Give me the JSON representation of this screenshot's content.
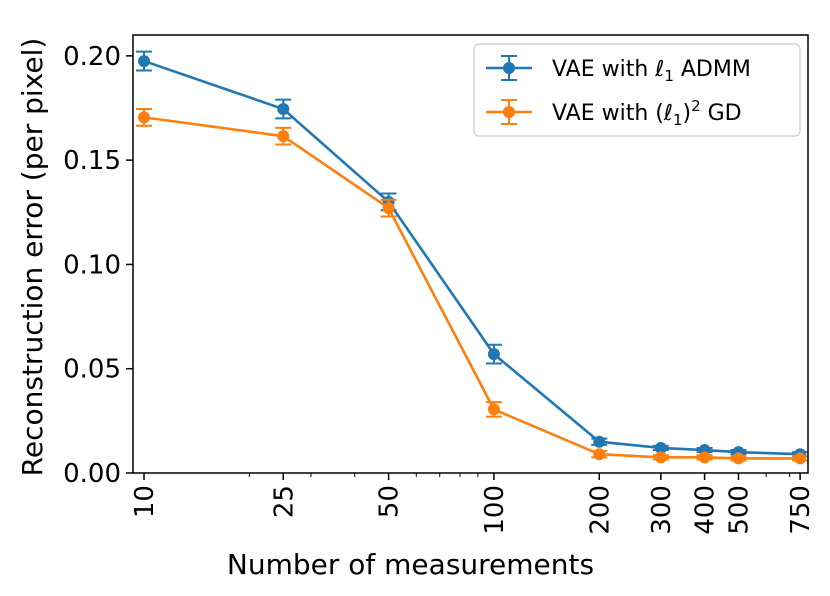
{
  "chart_data": {
    "type": "line",
    "xscale": "log",
    "x": [
      10,
      25,
      50,
      100,
      200,
      300,
      400,
      500,
      750
    ],
    "x_tick_labels": [
      "10",
      "25",
      "50",
      "100",
      "200",
      "300",
      "400",
      "500",
      "750"
    ],
    "series": [
      {
        "name": "VAE with ℓ1 ADMM",
        "legend_main": "VAE with ℓ",
        "legend_sub": "1",
        "legend_tail": " ADMM",
        "color": "#1f77b4",
        "values": [
          0.1975,
          0.1745,
          0.13,
          0.057,
          0.015,
          0.012,
          0.011,
          0.01,
          0.009
        ],
        "errors": [
          0.0045,
          0.0045,
          0.004,
          0.0045,
          0.0015,
          0.001,
          0.001,
          0.001,
          0.001
        ]
      },
      {
        "name": "VAE with (ℓ1)² GD",
        "legend_main": "VAE with (ℓ",
        "legend_sub": "1",
        "legend_close": ")",
        "legend_sup": "2",
        "legend_tail": " GD",
        "color": "#ff7f0e",
        "values": [
          0.1705,
          0.1615,
          0.127,
          0.0305,
          0.009,
          0.0075,
          0.0075,
          0.007,
          0.007
        ],
        "errors": [
          0.004,
          0.004,
          0.004,
          0.0035,
          0.0015,
          0.001,
          0.001,
          0.001,
          0.001
        ]
      }
    ],
    "title": "",
    "xlabel": "Number of measurements",
    "ylabel": "Reconstruction error (per pixel)",
    "ylim": [
      0,
      0.21
    ],
    "xlim": [
      9.3,
      790
    ],
    "y_ticks": [
      0.0,
      0.05,
      0.1,
      0.15,
      0.2
    ],
    "y_tick_labels": [
      "0.00",
      "0.05",
      "0.10",
      "0.15",
      "0.20"
    ],
    "grid": false,
    "legend_position": "top-right"
  }
}
